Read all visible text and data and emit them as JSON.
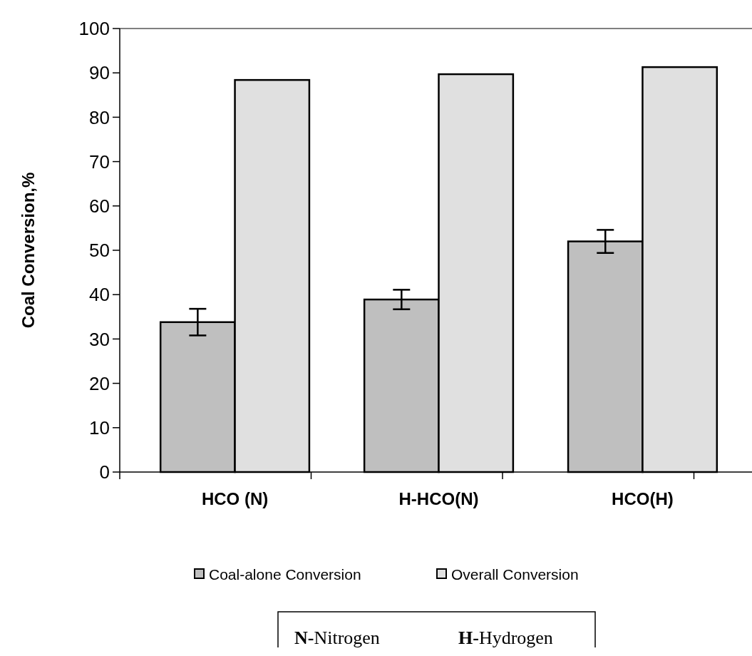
{
  "chart_data": {
    "type": "bar",
    "ylabel": "Coal Conversion,%",
    "categories": [
      "HCO (N)",
      "H-HCO(N)",
      "HCO(H)"
    ],
    "series": [
      {
        "name": "Coal-alone Conversion",
        "color": "#bfbfbf",
        "values": [
          33.8,
          38.9,
          52
        ],
        "errors": [
          3,
          2.2,
          2.6
        ]
      },
      {
        "name": "Overall Conversion",
        "color": "#e0e0e0",
        "values": [
          88.4,
          89.7,
          91.3
        ]
      }
    ],
    "ylim": [
      0,
      100
    ],
    "yticks": [
      0,
      10,
      20,
      30,
      40,
      50,
      60,
      70,
      80,
      90,
      100
    ],
    "legend": "bottom",
    "annotations": [
      "N-Nitrogen",
      "H-Hydrogen"
    ]
  }
}
